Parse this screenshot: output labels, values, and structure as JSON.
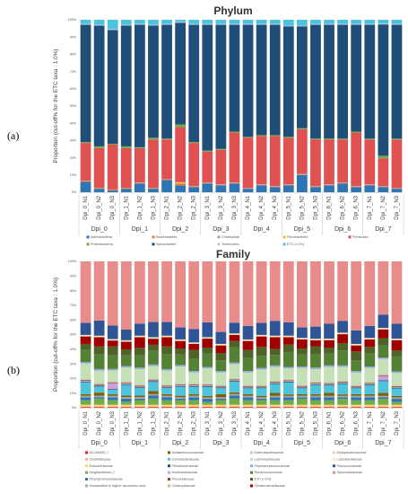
{
  "panels": [
    {
      "label": "(a)"
    },
    {
      "label": "(b)"
    }
  ],
  "chart_data": [
    {
      "type": "bar",
      "stacked": true,
      "title": "Phylum",
      "ylabel": "Proportion (cut-off% for the ETC taxa : 1.0%)",
      "xlabel": "",
      "ylim": [
        0,
        100
      ],
      "yticks": [
        "0%",
        "10%",
        "20%",
        "30%",
        "40%",
        "50%",
        "60%",
        "70%",
        "80%",
        "90%",
        "100%"
      ],
      "categories": [
        "Dpi_0_N1",
        "Dpi_0_N2",
        "Dpi_0_N3",
        "Dpi_1_N1",
        "Dpi_1_N2",
        "Dpi_1_N3",
        "Dpi_2_N1",
        "Dpi_2_N2",
        "Dpi_2_N3",
        "Dpi_3_N1",
        "Dpi_3_N2",
        "Dpi_3_N3",
        "Dpi_4_N1",
        "Dpi_4_N2",
        "Dpi_4_N3",
        "Dpi_5_N1",
        "Dpi_5_N2",
        "Dpi_5_N3",
        "Dpi_6_N1",
        "Dpi_6_N2",
        "Dpi_6_N3",
        "Dpi_7_N1",
        "Dpi_7_N2",
        "Dpi_7_N3"
      ],
      "groups": [
        "Dpi_0",
        "Dpi_1",
        "Dpi_2",
        "Dpi_3",
        "Dpi_4",
        "Dpi_5",
        "Dpi_6",
        "Dpi_7"
      ],
      "legend_position": "bottom",
      "series": [
        {
          "name": "Actinobacteria",
          "color": "#2e75b6",
          "values": [
            6,
            2,
            1,
            2,
            5,
            2,
            7,
            4,
            3,
            5,
            4,
            5,
            2,
            4,
            3,
            4,
            10,
            3,
            4,
            5,
            3,
            4,
            3,
            2
          ]
        },
        {
          "name": "Bacteroidetes",
          "color": "#ed7d31",
          "values": [
            0.3,
            0.3,
            0.3,
            0.3,
            0.3,
            0.3,
            0.3,
            1,
            0.3,
            0.3,
            0.3,
            0.3,
            0.3,
            0.3,
            0.3,
            0.3,
            0.3,
            0.3,
            0.3,
            0.3,
            0.3,
            0.3,
            0.3,
            0.3
          ]
        },
        {
          "name": "Chlamydiae",
          "color": "#a5a5a5",
          "values": [
            0.3,
            0.3,
            0.3,
            0.3,
            0.3,
            0.3,
            0.3,
            0.3,
            0.3,
            0.3,
            0.3,
            0.3,
            0.3,
            0.3,
            0.3,
            0.3,
            0.3,
            0.3,
            0.3,
            0.3,
            0.3,
            0.3,
            0.3,
            0.3
          ]
        },
        {
          "name": "Fibrobacteres",
          "color": "#ffc000",
          "values": [
            0,
            0,
            0,
            0,
            0,
            0,
            0,
            0.5,
            0,
            0,
            0,
            0,
            0,
            0,
            0,
            0,
            0,
            0,
            0,
            0,
            0,
            0,
            0,
            0
          ]
        },
        {
          "name": "Firmicutes",
          "color": "#e05252",
          "values": [
            22,
            23,
            26,
            23,
            20,
            28,
            23,
            32,
            25,
            18,
            20,
            29,
            29,
            28,
            29,
            27,
            26,
            27,
            26,
            25,
            31,
            26,
            16,
            28
          ]
        },
        {
          "name": "Proteobacteria",
          "color": "#70ad47",
          "values": [
            0.5,
            1,
            0.5,
            1,
            0.5,
            1,
            0.5,
            1.5,
            0.5,
            0.5,
            0.5,
            0.5,
            0.5,
            0.5,
            0.5,
            0.5,
            0.5,
            0.5,
            0.5,
            0.5,
            0.5,
            0.5,
            1.5,
            0.5
          ]
        },
        {
          "name": "Spirochaetes",
          "color": "#1f4e79",
          "values": [
            68,
            70,
            66,
            70,
            71,
            65,
            66,
            59,
            68,
            73,
            72,
            62,
            65,
            64,
            64,
            64,
            59,
            66,
            66,
            66,
            62,
            66,
            76,
            66
          ]
        },
        {
          "name": "Tenericutes",
          "color": "#b4c7e7",
          "values": [
            0.5,
            0.5,
            0.5,
            0.5,
            0.5,
            0.5,
            0.5,
            0.5,
            0.5,
            0.5,
            0.5,
            0.5,
            0.5,
            0.5,
            0.5,
            0.5,
            0.5,
            0.5,
            0.5,
            0.5,
            0.5,
            0.5,
            0.5,
            0.5
          ]
        },
        {
          "name": "ETC (<1%)",
          "color": "#4dc3dc",
          "values": [
            2.4,
            2.9,
            5.4,
            2.9,
            2.4,
            2.9,
            2.4,
            1.2,
            2.4,
            2.4,
            2.4,
            2.4,
            2.4,
            2.4,
            2.4,
            3.4,
            3.4,
            2.4,
            2.4,
            2.4,
            2.4,
            2.4,
            2.2,
            2.4
          ]
        }
      ]
    },
    {
      "type": "bar",
      "stacked": true,
      "title": "Family",
      "ylabel": "Proportion (cut-off% for the ETC taxa : 1.0%)",
      "xlabel": "",
      "ylim": [
        0,
        100
      ],
      "yticks": [
        "0%",
        "10%",
        "20%",
        "30%",
        "40%",
        "50%",
        "60%",
        "70%",
        "80%",
        "90%",
        "100%"
      ],
      "categories": [
        "Dpi_0_N1",
        "Dpi_0_N2",
        "Dpi_0_N3",
        "Dpi_1_N1",
        "Dpi_1_N2",
        "Dpi_1_N3",
        "Dpi_2_N1",
        "Dpi_2_N2",
        "Dpi_2_N3",
        "Dpi_3_N1",
        "Dpi_3_N2",
        "Dpi_3_N3",
        "Dpi_4_N1",
        "Dpi_4_N2",
        "Dpi_4_N3",
        "Dpi_5_N1",
        "Dpi_5_N2",
        "Dpi_5_N3",
        "Dpi_6_N1",
        "Dpi_6_N2",
        "Dpi_6_N3",
        "Dpi_7_N1",
        "Dpi_7_N2",
        "Dpi_7_N3"
      ],
      "groups": [
        "Dpi_0",
        "Dpi_1",
        "Dpi_2",
        "Dpi_3",
        "Dpi_4",
        "Dpi_5",
        "Dpi_6",
        "Dpi_7"
      ],
      "legend_position": "bottom",
      "series": [
        {
          "name": "AC160630_f",
          "color": "#ed1c24",
          "values": [
            0.5,
            0.5,
            0.5,
            0.5,
            0.5,
            0.5,
            0.5,
            0.5,
            0.5,
            0.5,
            0.5,
            0.5,
            0.5,
            0.5,
            0.5,
            0.5,
            0.5,
            0.5,
            0.5,
            0.5,
            0.5,
            0.5,
            0.5,
            0.5
          ]
        },
        {
          "name": "Clostridiaceae",
          "color": "#f4b183",
          "values": [
            0.5,
            0.5,
            0.5,
            0.5,
            0.5,
            0.5,
            0.5,
            0.5,
            0.5,
            0.5,
            0.5,
            0.5,
            0.5,
            0.5,
            0.5,
            0.5,
            0.5,
            0.5,
            0.5,
            0.5,
            0.5,
            0.5,
            0.5,
            0.5
          ]
        },
        {
          "name": "Eubacteriaceae",
          "color": "#ffd966",
          "values": [
            1,
            1,
            1,
            1,
            1,
            1,
            1,
            1,
            1,
            1,
            1,
            1,
            1,
            1,
            1,
            1,
            1,
            1,
            1,
            1,
            1,
            1,
            1,
            1
          ]
        },
        {
          "name": "Mogibacterium_f",
          "color": "#70ad47",
          "values": [
            3,
            4,
            3,
            2,
            3,
            4,
            3,
            3,
            3,
            2,
            3,
            4,
            3,
            3,
            3,
            3,
            4,
            3,
            3,
            4,
            3,
            3,
            4,
            2
          ]
        },
        {
          "name": "Porphyromonadaceae",
          "color": "#2e75b6",
          "values": [
            2,
            1,
            2,
            2,
            1,
            2,
            2,
            1,
            2,
            2,
            1,
            2,
            2,
            1,
            2,
            2,
            1,
            2,
            2,
            1,
            2,
            2,
            1,
            2
          ]
        },
        {
          "name": "Unclassified in higher taxonomic rank",
          "color": "#a5a5a5",
          "values": [
            1,
            1,
            1,
            1,
            1,
            1,
            1,
            1,
            1,
            1,
            1,
            1,
            1,
            1,
            1,
            1,
            1,
            1,
            1,
            1,
            1,
            1,
            1,
            1
          ]
        },
        {
          "name": "Acidaminococcaceae",
          "color": "#7f6000",
          "values": [
            1,
            2,
            1,
            1,
            1,
            2,
            1,
            1,
            1,
            1,
            2,
            1,
            1,
            1,
            2,
            1,
            1,
            1,
            2,
            1,
            1,
            1,
            2,
            1
          ]
        },
        {
          "name": "Coriobacteriaceae",
          "color": "#4dc3dc",
          "values": [
            8,
            4,
            3,
            7,
            5,
            6,
            4,
            6,
            5,
            6,
            4,
            7,
            4,
            5,
            6,
            8,
            4,
            6,
            5,
            7,
            4,
            6,
            8,
            5
          ]
        },
        {
          "name": "Fibrobacteraceae",
          "color": "#1f4e79",
          "values": [
            0.5,
            0.5,
            0.5,
            0.5,
            0.5,
            0.5,
            0.5,
            0.5,
            0.5,
            0.5,
            0.5,
            0.5,
            0.5,
            0.5,
            0.5,
            0.5,
            0.5,
            0.5,
            0.5,
            0.5,
            0.5,
            0.5,
            0.5,
            0.5
          ]
        },
        {
          "name": "Mucibacteraceae",
          "color": "#c9a0dc",
          "values": [
            0.5,
            0.5,
            4,
            0.5,
            0.5,
            0.5,
            0.5,
            0.5,
            0.5,
            0.5,
            0.5,
            0.5,
            0.5,
            0.5,
            0.5,
            0.5,
            0.5,
            0.5,
            0.5,
            0.5,
            0.5,
            0.5,
            3,
            0.5
          ]
        },
        {
          "name": "Prevotellaceae",
          "color": "#9e480e",
          "values": [
            0.5,
            0.5,
            0.5,
            0.5,
            0.5,
            0.5,
            0.5,
            0.5,
            0.5,
            0.5,
            0.5,
            0.5,
            0.5,
            0.5,
            0.5,
            0.5,
            0.5,
            0.5,
            0.5,
            0.5,
            0.5,
            0.5,
            0.5,
            0.5
          ]
        },
        {
          "name": "Chlamydiaceae",
          "color": "#a9d18e",
          "values": [
            0.5,
            0.5,
            0.5,
            0.5,
            0.5,
            0.5,
            0.5,
            0.5,
            0.5,
            0.5,
            0.5,
            0.5,
            0.5,
            0.5,
            0.5,
            0.5,
            0.5,
            0.5,
            0.5,
            0.5,
            0.5,
            0.5,
            0.5,
            0.5
          ]
        },
        {
          "name": "Enterobacteriaceae",
          "color": "#c9c9c9",
          "values": [
            0.5,
            0.5,
            0.5,
            0.5,
            0.5,
            0.5,
            0.5,
            0.5,
            0.5,
            0.5,
            0.5,
            0.5,
            0.5,
            0.5,
            0.5,
            0.5,
            0.5,
            0.5,
            0.5,
            0.5,
            0.5,
            0.5,
            0.5,
            0.5
          ]
        },
        {
          "name": "Lachnospiraceae",
          "color": "#c5e0b4",
          "values": [
            10,
            8,
            7,
            9,
            10,
            8,
            9,
            11,
            7,
            10,
            8,
            9,
            8,
            10,
            9,
            7,
            11,
            8,
            10,
            9,
            8,
            9,
            10,
            8
          ]
        },
        {
          "name": "Peptostreptococcaceae",
          "color": "#8faadc",
          "values": [
            1,
            1,
            1,
            1,
            1,
            1,
            1,
            1,
            1,
            1,
            1,
            1,
            1,
            1,
            1,
            1,
            1,
            1,
            1,
            1,
            1,
            1,
            1,
            1
          ]
        },
        {
          "name": "Ruminococcaceae",
          "color": "#548235",
          "values": [
            8,
            10,
            9,
            7,
            8,
            9,
            10,
            7,
            8,
            9,
            7,
            10,
            9,
            8,
            7,
            10,
            8,
            9,
            8,
            10,
            7,
            9,
            8,
            10
          ]
        },
        {
          "name": "ETC (<1%)",
          "color": "#4f6228",
          "values": [
            4,
            5,
            6,
            4,
            5,
            4,
            5,
            4,
            6,
            4,
            5,
            4,
            5,
            6,
            4,
            5,
            4,
            5,
            4,
            5,
            6,
            4,
            5,
            4
          ]
        },
        {
          "name": "Christensenellaceae",
          "color": "#a00000",
          "values": [
            5,
            6,
            4,
            5,
            7,
            4,
            6,
            5,
            4,
            6,
            5,
            4,
            6,
            7,
            8,
            5,
            6,
            4,
            5,
            6,
            4,
            5,
            6,
            7
          ]
        },
        {
          "name": "Erysipelotrichaceae",
          "color": "#f8cbad",
          "values": [
            0.5,
            0.5,
            0.5,
            0.5,
            0.5,
            0.5,
            0.5,
            0.5,
            0.5,
            0.5,
            0.5,
            0.5,
            0.5,
            0.5,
            0.5,
            0.5,
            0.5,
            0.5,
            0.5,
            0.5,
            0.5,
            0.5,
            0.5,
            0.5
          ]
        },
        {
          "name": "Lactobacillaceae",
          "color": "#f2f2a0",
          "values": [
            0.5,
            0.5,
            0.5,
            0.5,
            0.5,
            0.5,
            0.5,
            0.5,
            0.5,
            0.5,
            0.5,
            0.5,
            0.5,
            0.5,
            0.5,
            0.5,
            0.5,
            0.5,
            0.5,
            0.5,
            0.5,
            0.5,
            0.5,
            0.5
          ]
        },
        {
          "name": "Planococcaceae",
          "color": "#2f5597",
          "values": [
            8,
            10,
            9,
            7,
            8,
            10,
            9,
            8,
            9,
            10,
            8,
            7,
            9,
            8,
            10,
            9,
            7,
            8,
            10,
            8,
            9,
            8,
            9,
            10
          ]
        },
        {
          "name": "Spirochaetaceae",
          "color": "#e88b8b",
          "values": [
            41,
            39,
            43,
            45,
            41,
            40,
            40,
            44,
            45,
            41,
            47,
            40,
            43,
            41,
            40,
            41,
            44,
            43,
            42,
            40,
            46,
            43,
            36,
            42
          ]
        }
      ]
    }
  ]
}
